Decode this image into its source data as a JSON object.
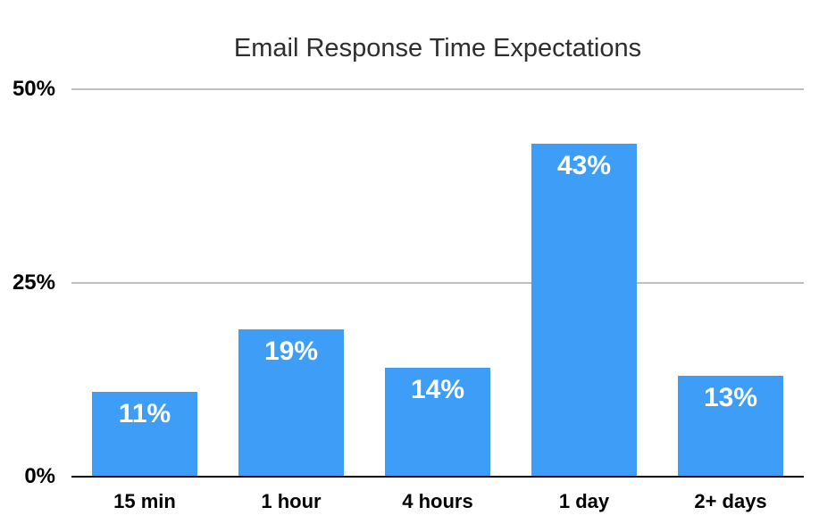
{
  "chart_data": {
    "type": "bar",
    "title": "Email Response Time Expectations",
    "categories": [
      "15 min",
      "1 hour",
      "4 hours",
      "1 day",
      "2+ days"
    ],
    "values": [
      11,
      19,
      14,
      43,
      13
    ],
    "value_labels": [
      "11%",
      "19%",
      "14%",
      "43%",
      "13%"
    ],
    "xlabel": "",
    "ylabel": "",
    "ylim": [
      0,
      50
    ],
    "yticks": [
      {
        "value": 0,
        "label": "0%"
      },
      {
        "value": 25,
        "label": "25%"
      },
      {
        "value": 50,
        "label": "50%"
      }
    ],
    "grid": "horizontal-only",
    "legend": "none",
    "colors": {
      "bar": "#3e9ef7",
      "bar_label": "#ffffff",
      "gridline": "#bfbfbf",
      "axis_line": "#000000",
      "title": "#2e2e2e",
      "tick_label": "#000000",
      "category_label": "#000000",
      "background": "#ffffff"
    }
  }
}
